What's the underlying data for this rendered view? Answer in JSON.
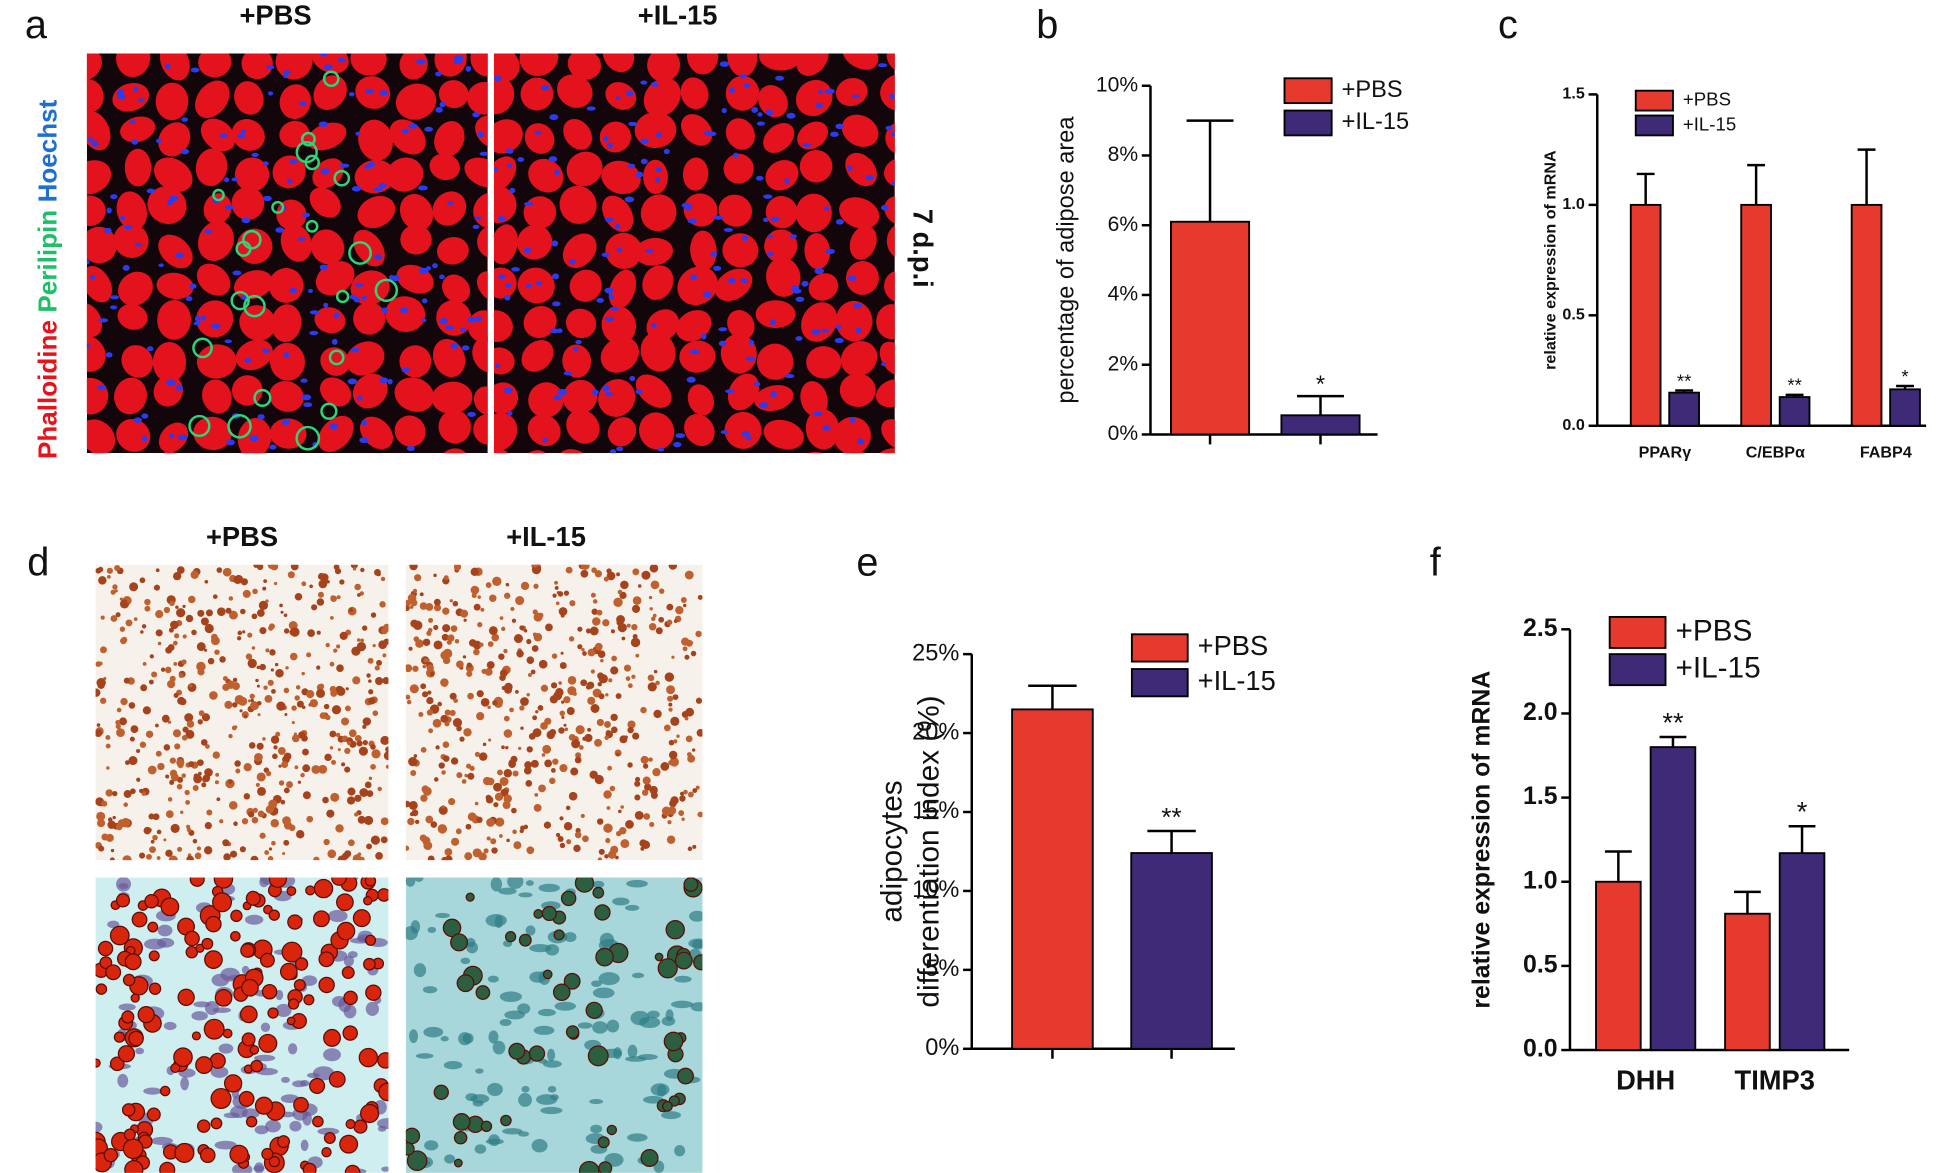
{
  "images": {
    "a": {
      "panel_label": "a",
      "columns": [
        "+PBS",
        "+IL-15"
      ],
      "stains": [
        "Phalloidine",
        "Perilipin",
        "Hoechst"
      ],
      "stain_colors": [
        "#e8121a",
        "#1fbf6a",
        "#1f6fd0"
      ],
      "timepoint": "7 d.p.i"
    },
    "d": {
      "panel_label": "d",
      "columns": [
        "+PBS",
        "+IL-15"
      ]
    }
  },
  "chart_data": [
    {
      "type": "bar",
      "panel_label": "b",
      "ylabel": "percentage of adipose area",
      "categories": [
        null
      ],
      "series": [
        {
          "name": "+PBS",
          "color": "#e63a2e",
          "values": [
            6.1
          ],
          "errors": [
            2.9
          ]
        },
        {
          "name": "+IL-15",
          "color": "#3f2a78",
          "values": [
            0.55
          ],
          "errors": [
            0.55
          ],
          "significance": [
            "*"
          ]
        }
      ],
      "ylim": [
        0,
        10
      ],
      "yticks": [
        {
          "value": 0,
          "label": "0%"
        },
        {
          "value": 2,
          "label": "2%"
        },
        {
          "value": 4,
          "label": "4%"
        },
        {
          "value": 6,
          "label": "6%"
        },
        {
          "value": 8,
          "label": "8%"
        },
        {
          "value": 10,
          "label": "10%"
        }
      ]
    },
    {
      "type": "bar",
      "panel_label": "c",
      "ylabel": "relative expression of mRNA",
      "categories": [
        "PPARγ",
        "C/EBPα",
        "FABP4"
      ],
      "series": [
        {
          "name": "+PBS",
          "color": "#e63a2e",
          "values": [
            1.0,
            1.0,
            1.0
          ],
          "errors": [
            0.14,
            0.18,
            0.25
          ]
        },
        {
          "name": "+IL-15",
          "color": "#3f2a78",
          "values": [
            0.15,
            0.13,
            0.165
          ],
          "errors": [
            0.01,
            0.01,
            0.015
          ],
          "significance": [
            "**",
            "**",
            "*"
          ]
        }
      ],
      "ylim": [
        0,
        1.5
      ],
      "yticks": [
        {
          "value": 0,
          "label": "0.0"
        },
        0.5,
        {
          "value": 1,
          "label": "1.0"
        },
        1.5
      ]
    },
    {
      "type": "bar",
      "panel_label": "e",
      "ylabel": [
        "adipocytes",
        "differentiation index (%)"
      ],
      "categories": [
        null
      ],
      "series": [
        {
          "name": "+PBS",
          "color": "#e63a2e",
          "values": [
            21.5
          ],
          "errors": [
            1.5
          ]
        },
        {
          "name": "+IL-15",
          "color": "#3f2a78",
          "values": [
            12.4
          ],
          "errors": [
            1.4
          ],
          "significance": [
            "**"
          ]
        }
      ],
      "ylim": [
        0,
        25
      ],
      "yticks": [
        {
          "value": 0,
          "label": "0%"
        },
        {
          "value": 5,
          "label": "5%"
        },
        {
          "value": 10,
          "label": "10%"
        },
        {
          "value": 15,
          "label": "15%"
        },
        {
          "value": 20,
          "label": "20%"
        },
        {
          "value": 25,
          "label": "25%"
        }
      ]
    },
    {
      "type": "bar",
      "panel_label": "f",
      "ylabel": "relative expression of mRNA",
      "categories": [
        "DHH",
        "TIMP3"
      ],
      "series": [
        {
          "name": "+PBS",
          "color": "#e63a2e",
          "values": [
            1.0,
            0.81
          ],
          "errors": [
            0.18,
            0.13
          ]
        },
        {
          "name": "+IL-15",
          "color": "#3f2a78",
          "values": [
            1.8,
            1.17
          ],
          "errors": [
            0.06,
            0.16
          ],
          "significance": [
            "**",
            "*"
          ]
        }
      ],
      "ylim": [
        0,
        2.5
      ],
      "yticks": [
        {
          "value": 0,
          "label": "0.0"
        },
        0.5,
        {
          "value": 1,
          "label": "1.0"
        },
        1.5,
        {
          "value": 2,
          "label": "2.0"
        },
        2.5
      ]
    }
  ]
}
